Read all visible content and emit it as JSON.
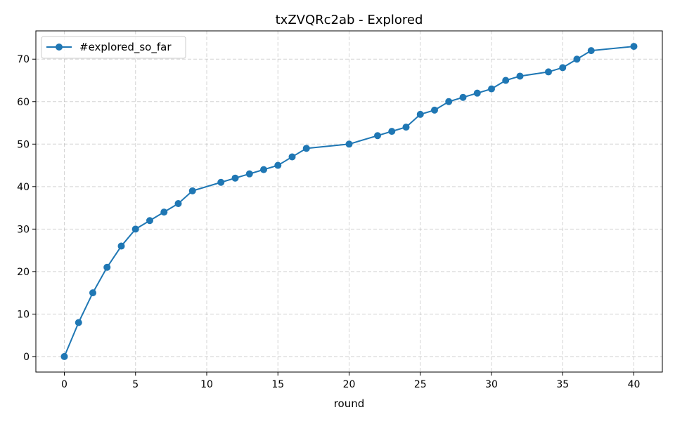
{
  "chart_data": {
    "type": "line",
    "title": "txZVQRc2ab - Explored",
    "xlabel": "round",
    "ylabel": "",
    "xlim": [
      -2,
      42
    ],
    "ylim": [
      -3.65,
      76.65
    ],
    "xticks": [
      0,
      5,
      10,
      15,
      20,
      25,
      30,
      35,
      40
    ],
    "yticks": [
      0,
      10,
      20,
      30,
      40,
      50,
      60,
      70
    ],
    "grid": true,
    "legend_position": "top-left",
    "series": [
      {
        "name": "#explored_so_far",
        "color": "#1f77b4",
        "marker": "circle",
        "x": [
          0,
          1,
          2,
          3,
          4,
          5,
          6,
          7,
          8,
          9,
          11,
          12,
          13,
          14,
          15,
          16,
          17,
          20,
          22,
          23,
          24,
          25,
          26,
          27,
          28,
          29,
          30,
          31,
          32,
          34,
          35,
          36,
          37,
          40
        ],
        "y": [
          0,
          8,
          15,
          21,
          26,
          30,
          32,
          34,
          36,
          39,
          41,
          42,
          43,
          44,
          45,
          47,
          49,
          50,
          52,
          53,
          54,
          57,
          58,
          60,
          61,
          62,
          63,
          65,
          66,
          67,
          68,
          70,
          72,
          73
        ]
      }
    ]
  }
}
